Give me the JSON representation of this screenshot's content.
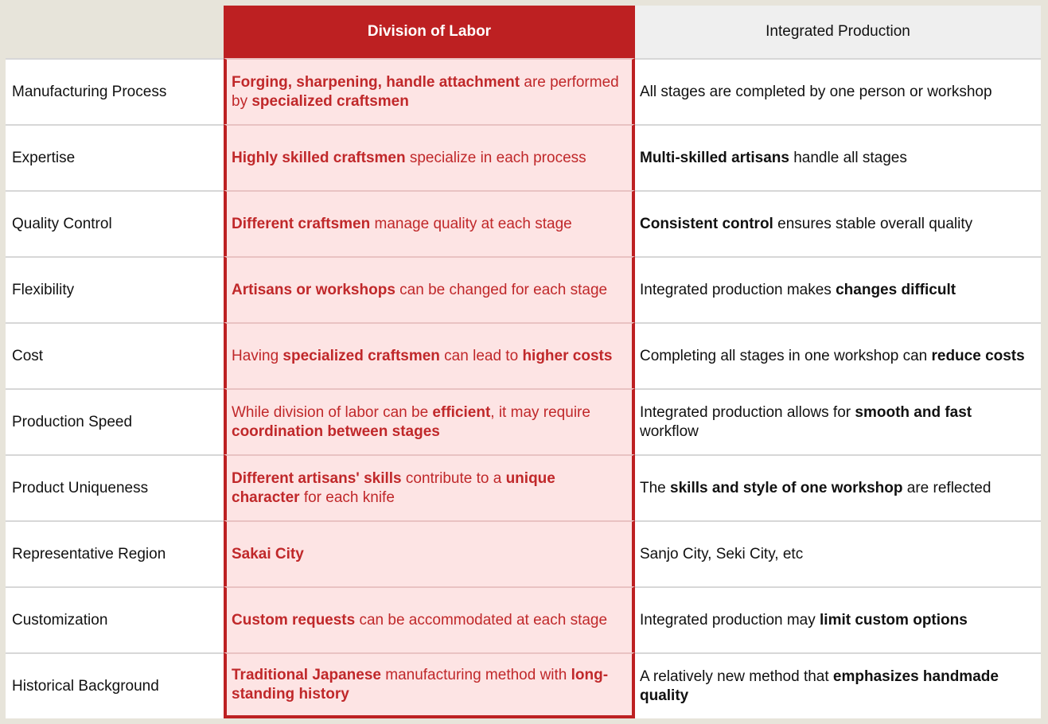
{
  "headers": {
    "division": "Division of Labor",
    "integrated": "Integrated Production"
  },
  "colors": {
    "accent_red": "#bd2022",
    "division_bg": "#fde4e4",
    "division_text": "#c0282a",
    "page_bg": "#e7e4da"
  },
  "rows": [
    {
      "label": "Manufacturing Process",
      "division": [
        {
          "t": "Forging, sharpening, handle attachment",
          "b": true
        },
        {
          "t": " are performed by ",
          "b": false
        },
        {
          "t": "specialized craftsmen",
          "b": true
        }
      ],
      "integrated": [
        {
          "t": "All stages are completed by one person or workshop",
          "b": false
        }
      ]
    },
    {
      "label": "Expertise",
      "division": [
        {
          "t": "Highly skilled craftsmen",
          "b": true
        },
        {
          "t": " specialize in each process",
          "b": false
        }
      ],
      "integrated": [
        {
          "t": "Multi-skilled artisans",
          "b": true
        },
        {
          "t": " handle all stages",
          "b": false
        }
      ]
    },
    {
      "label": "Quality Control",
      "division": [
        {
          "t": "Different craftsmen",
          "b": true
        },
        {
          "t": " manage quality at each stage",
          "b": false
        }
      ],
      "integrated": [
        {
          "t": "Consistent control",
          "b": true
        },
        {
          "t": " ensures stable overall quality",
          "b": false
        }
      ]
    },
    {
      "label": "Flexibility",
      "division": [
        {
          "t": "Artisans or workshops",
          "b": true
        },
        {
          "t": " can be changed for each stage",
          "b": false
        }
      ],
      "integrated": [
        {
          "t": "Integrated production makes ",
          "b": false
        },
        {
          "t": "changes difficult",
          "b": true
        }
      ]
    },
    {
      "label": "Cost",
      "division": [
        {
          "t": "Having ",
          "b": false
        },
        {
          "t": "specialized craftsmen",
          "b": true
        },
        {
          "t": " can lead to ",
          "b": false
        },
        {
          "t": "higher costs",
          "b": true
        }
      ],
      "integrated": [
        {
          "t": "Completing all stages in one workshop can ",
          "b": false
        },
        {
          "t": "reduce costs",
          "b": true
        }
      ]
    },
    {
      "label": "Production Speed",
      "division": [
        {
          "t": "While division of labor can be ",
          "b": false
        },
        {
          "t": "efficient",
          "b": true
        },
        {
          "t": ", it may require ",
          "b": false
        },
        {
          "t": "coordination between stages",
          "b": true
        }
      ],
      "integrated": [
        {
          "t": "Integrated production allows for ",
          "b": false
        },
        {
          "t": "smooth and fast",
          "b": true
        },
        {
          "t": " workflow",
          "b": false
        }
      ]
    },
    {
      "label": "Product Uniqueness",
      "division": [
        {
          "t": "Different artisans' skills",
          "b": true
        },
        {
          "t": " contribute to a ",
          "b": false
        },
        {
          "t": "unique character",
          "b": true
        },
        {
          "t": " for each knife",
          "b": false
        }
      ],
      "integrated": [
        {
          "t": "The ",
          "b": false
        },
        {
          "t": "skills and style of one workshop",
          "b": true
        },
        {
          "t": " are reflected",
          "b": false
        }
      ]
    },
    {
      "label": "Representative Region",
      "division": [
        {
          "t": "Sakai City",
          "b": true
        }
      ],
      "integrated": [
        {
          "t": "Sanjo City, Seki City, etc",
          "b": false
        }
      ]
    },
    {
      "label": "Customization",
      "division": [
        {
          "t": "Custom requests",
          "b": true
        },
        {
          "t": " can be accommodated at each stage",
          "b": false
        }
      ],
      "integrated": [
        {
          "t": "Integrated production may ",
          "b": false
        },
        {
          "t": "limit custom options",
          "b": true
        }
      ]
    },
    {
      "label": "Historical Background",
      "division": [
        {
          "t": "Traditional Japanese",
          "b": true
        },
        {
          "t": " manufacturing method with ",
          "b": false
        },
        {
          "t": "long-standing history",
          "b": true
        }
      ],
      "integrated": [
        {
          "t": "A relatively new method that ",
          "b": false
        },
        {
          "t": "emphasizes handmade quality",
          "b": true
        }
      ]
    }
  ]
}
